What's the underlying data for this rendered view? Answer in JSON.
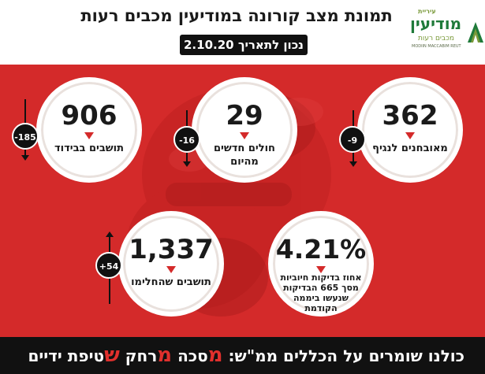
{
  "logo": {
    "small": "עיריית",
    "main": "מודיעין",
    "sub": "מכבים רעות",
    "english": "MODIIN MACCABIM REUT"
  },
  "header": {
    "title": "תמונת מצב קורונה במודיעין מכבים רעות",
    "date": "נכון לתאריך 2.10.20"
  },
  "stats": {
    "quarantined": {
      "value": "906",
      "label": "תושבים בבידוד",
      "delta": "-185",
      "trend": "down"
    },
    "new_cases": {
      "value": "29",
      "label": "חולים חדשים מהיום",
      "delta": "-16",
      "trend": "down"
    },
    "confirmed": {
      "value": "362",
      "label": "מאובחנים לנגיף",
      "delta": "-9",
      "trend": "down"
    },
    "recovered": {
      "value": "1,337",
      "label": "תושבים שהחלימו",
      "delta": "+54",
      "trend": "up"
    },
    "positive_rate": {
      "value": "4.21%",
      "label_line1": "אחוז בדיקות חיוביות",
      "label_line2": "מסך 665 הבדיקות",
      "label_line3": "שנעשו ביממה",
      "label_line4": "הקודמת"
    }
  },
  "footer": {
    "prefix": "כולנו שומרים על הכללים ממ\"ש:",
    "m1": "מ",
    "w1": "סכה",
    "m2": "מ",
    "w2": "רחק",
    "m3": "ש",
    "w3": "טיפת ידיים"
  },
  "colors": {
    "brand_red": "#d42a2a",
    "dark": "#111111",
    "logo_green": "#1f7a3a",
    "accent_red_text": "#e0302d"
  }
}
